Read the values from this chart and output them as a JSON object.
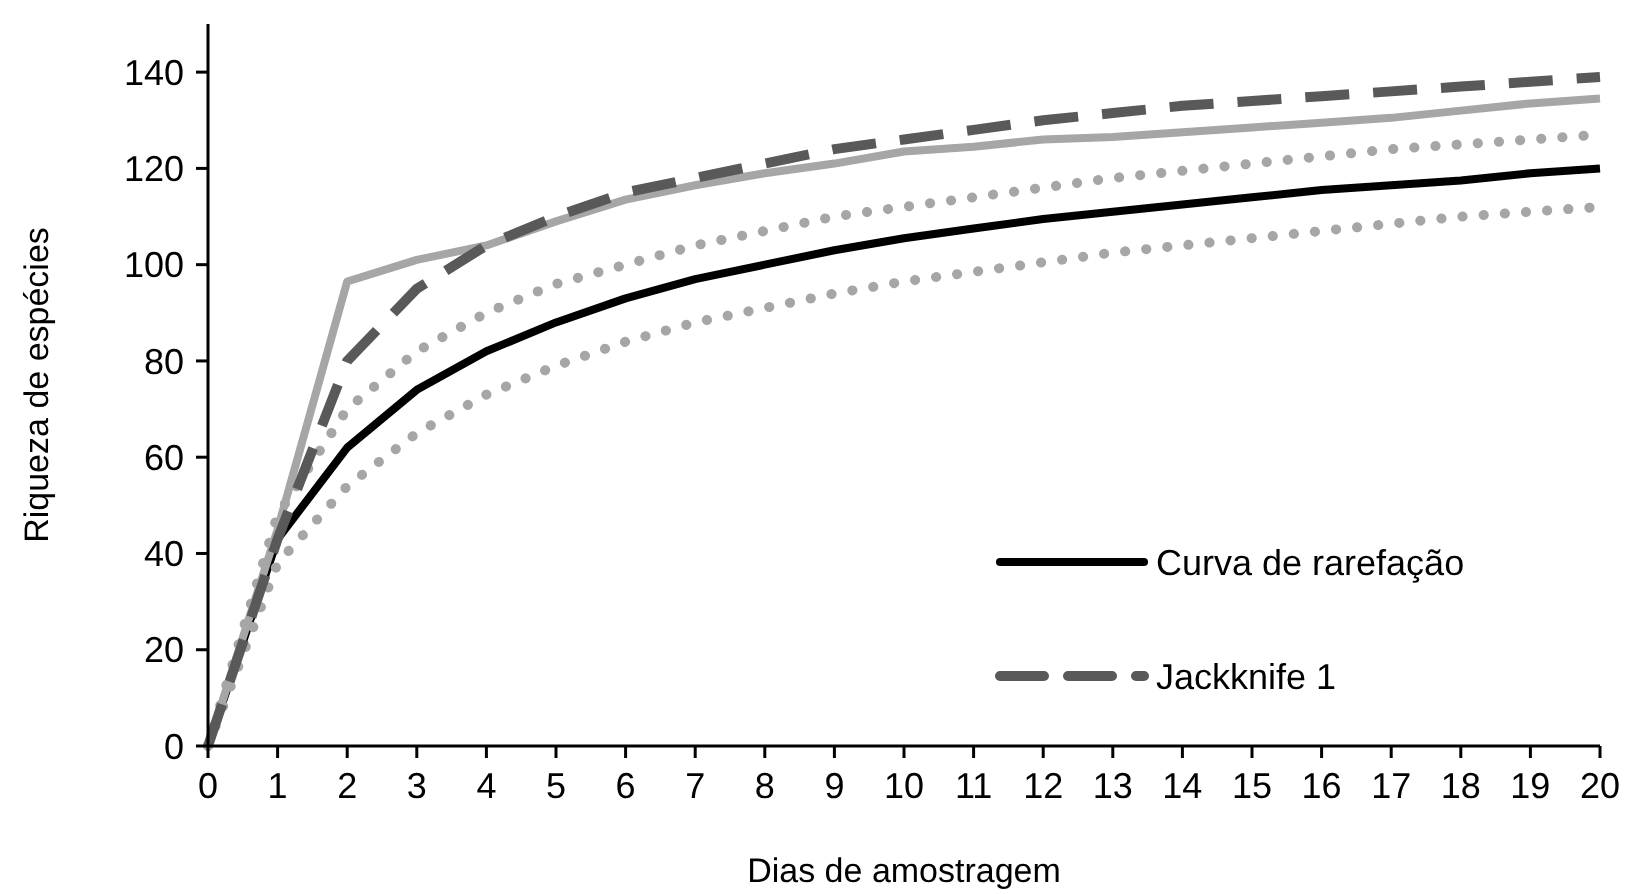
{
  "chart_data": {
    "type": "line",
    "xlabel": "Dias de amostragem",
    "ylabel": "Riqueza de espécies",
    "x": [
      0,
      1,
      2,
      3,
      4,
      5,
      6,
      7,
      8,
      9,
      10,
      11,
      12,
      13,
      14,
      15,
      16,
      17,
      18,
      19,
      20
    ],
    "xlim": [
      0,
      20
    ],
    "xticks": [
      0,
      1,
      2,
      3,
      4,
      5,
      6,
      7,
      8,
      9,
      10,
      11,
      12,
      13,
      14,
      15,
      16,
      17,
      18,
      19,
      20
    ],
    "ylim": [
      0,
      150
    ],
    "yticks": [
      0,
      20,
      40,
      60,
      80,
      100,
      120,
      140
    ],
    "grid": false,
    "legend": "bottom right",
    "marker": "none",
    "series": [
      {
        "name": "Curva de rarefação",
        "color": "#000000",
        "line_style": "solid",
        "values": [
          0,
          43,
          62,
          74,
          82,
          88,
          93,
          97,
          100,
          103,
          105.5,
          107.5,
          109.5,
          111,
          112.5,
          114,
          115.5,
          116.5,
          117.5,
          119,
          120
        ]
      },
      {
        "color": "#a6a6a6",
        "line_style": "dotted",
        "values": [
          0,
          48,
          70,
          82,
          90,
          96,
          100,
          104,
          107,
          110,
          112,
          114,
          116,
          118,
          119.5,
          121,
          122.5,
          124,
          125,
          126,
          127
        ]
      },
      {
        "color": "#a6a6a6",
        "line_style": "dotted",
        "values": [
          0,
          38,
          54,
          65,
          73,
          79,
          84,
          88,
          91,
          94,
          96.5,
          98.5,
          100.5,
          102.5,
          104,
          105.5,
          107,
          108.5,
          110,
          111,
          112
        ]
      },
      {
        "color": "#a6a6a6",
        "line_style": "solid",
        "values": [
          0,
          45,
          96.5,
          101,
          104,
          109,
          113.5,
          116.5,
          119,
          121,
          123.5,
          124.5,
          126,
          126.5,
          127.5,
          128.5,
          129.5,
          130.5,
          132,
          133.5,
          134.5
        ]
      },
      {
        "name": "Jackknife 1",
        "color": "#595959",
        "line_style": "dashed",
        "values": [
          0,
          43,
          80,
          95,
          104,
          110,
          115,
          118,
          121,
          124,
          126,
          128,
          130,
          131.5,
          133,
          134,
          135,
          136,
          137,
          138,
          139
        ]
      }
    ]
  }
}
